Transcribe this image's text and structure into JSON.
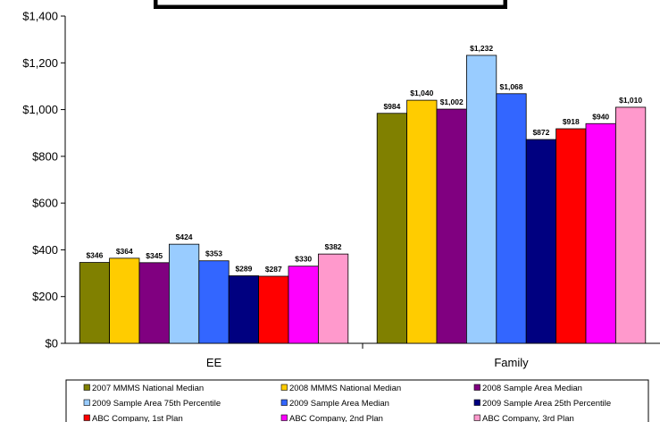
{
  "chart_data": {
    "type": "bar",
    "title": "",
    "xlabel": "",
    "ylabel": "",
    "categories": [
      "EE",
      "Family"
    ],
    "ylim": [
      0,
      1400
    ],
    "ytick_step": 200,
    "y_tick_labels": [
      "$0",
      "$200",
      "$400",
      "$600",
      "$800",
      "$1,000",
      "$1,200",
      "$1,400"
    ],
    "grid": false,
    "legend_placement": "bottom",
    "series": [
      {
        "name": "2007 MMMS National Median",
        "color": "#808000",
        "values": [
          346,
          984
        ],
        "labels": [
          "$346",
          "$984"
        ]
      },
      {
        "name": "2008 MMMS National Median",
        "color": "#FFCC00",
        "values": [
          364,
          1040
        ],
        "labels": [
          "$364",
          "$1,040"
        ]
      },
      {
        "name": "2008 Sample Area Median",
        "color": "#800080",
        "values": [
          345,
          1002
        ],
        "labels": [
          "$345",
          "$1,002"
        ]
      },
      {
        "name": "2009 Sample Area 75th Percentile",
        "color": "#99CCFF",
        "values": [
          424,
          1232
        ],
        "labels": [
          "$424",
          "$1,232"
        ]
      },
      {
        "name": "2009 Sample Area Median",
        "color": "#3366FF",
        "values": [
          353,
          1068
        ],
        "labels": [
          "$353",
          "$1,068"
        ]
      },
      {
        "name": "2009 Sample Area 25th Percentile",
        "color": "#000080",
        "values": [
          289,
          872
        ],
        "labels": [
          "$289",
          "$872"
        ]
      },
      {
        "name": "ABC Company, 1st Plan",
        "color": "#FF0000",
        "values": [
          287,
          918
        ],
        "labels": [
          "$287",
          "$918"
        ]
      },
      {
        "name": "ABC Company, 2nd Plan",
        "color": "#FF00FF",
        "values": [
          330,
          940
        ],
        "labels": [
          "$330",
          "$940"
        ]
      },
      {
        "name": "ABC Company, 3rd Plan",
        "color": "#FF99CC",
        "values": [
          382,
          1010
        ],
        "labels": [
          "$382",
          "$1,010"
        ]
      }
    ]
  }
}
